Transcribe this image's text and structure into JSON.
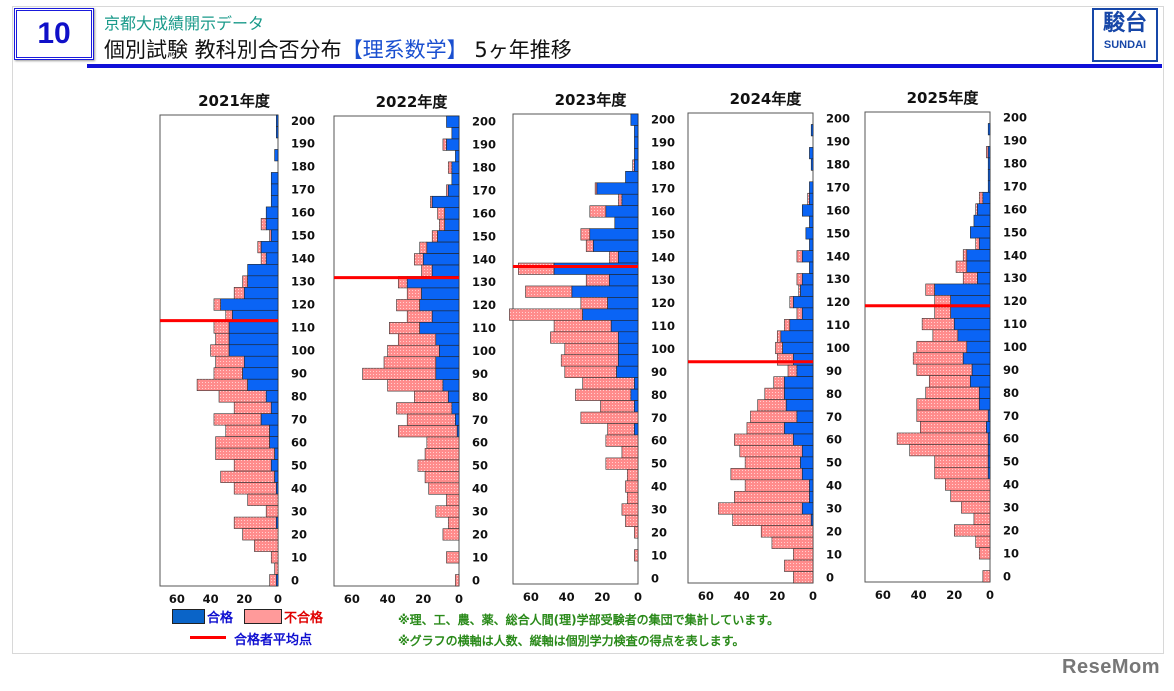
{
  "header": {
    "number": "10",
    "subtitle": "京都大成績開示データ",
    "title_pre": "個別試験 教科別合否分布",
    "title_hl": "【理系数学】",
    "title_post": " 5ヶ年推移",
    "logo_kanji": "駿台",
    "logo_en": "SUNDAI"
  },
  "legend": {
    "pass_label": "合格",
    "fail_label": "不合格",
    "mean_label": "合格者平均点"
  },
  "notes": [
    "※理、工、農、薬、総合人間(理)学部受験者の集団で集計しています。",
    "※グラフの横軸は人数、縦軸は個別学力検査の得点を表します。"
  ],
  "watermark": "ReseMom",
  "colors": {
    "pass": "#0a64f5",
    "fail": "#ff8c8c",
    "mean": "#ff0000"
  },
  "chart_data": {
    "type": "bar",
    "orientation": "horizontal-stacked",
    "xlabel_meaning": "人数",
    "ylabel_meaning": "得点",
    "xlim": [
      0,
      70
    ],
    "x_direction": "reversed",
    "x_ticks": [
      "60",
      "40",
      "20",
      "0"
    ],
    "y_ticks": [
      "200",
      "190",
      "180",
      "170",
      "160",
      "150",
      "140",
      "130",
      "120",
      "110",
      "100",
      "90",
      "80",
      "70",
      "60",
      "50",
      "40",
      "30",
      "20",
      "10",
      "0"
    ],
    "score_bins": [
      200,
      195,
      190,
      185,
      180,
      175,
      170,
      165,
      160,
      155,
      150,
      145,
      140,
      135,
      130,
      125,
      120,
      115,
      110,
      105,
      100,
      95,
      90,
      85,
      80,
      75,
      70,
      65,
      60,
      55,
      50,
      45,
      40,
      35,
      30,
      25,
      20,
      15,
      10,
      5,
      0
    ],
    "panels": [
      {
        "title": "2021年度",
        "mean": 113,
        "pass": [
          1,
          1,
          0,
          2,
          0,
          4,
          4,
          4,
          7,
          7,
          4,
          10,
          7,
          18,
          18,
          20,
          34,
          27,
          29,
          29,
          29,
          20,
          21,
          18,
          7,
          4,
          10,
          5,
          5,
          2,
          4,
          2,
          1,
          0,
          0,
          1,
          0,
          0,
          0,
          0,
          1
        ],
        "fail": [
          0,
          0,
          0,
          0,
          0,
          0,
          0,
          0,
          0,
          3,
          1,
          2,
          3,
          0,
          3,
          6,
          4,
          4,
          9,
          8,
          11,
          17,
          17,
          30,
          28,
          22,
          28,
          26,
          32,
          35,
          22,
          32,
          25,
          18,
          7,
          25,
          21,
          14,
          4,
          2,
          4
        ]
      },
      {
        "title": "2022年度",
        "mean": 132,
        "pass": [
          7,
          4,
          7,
          2,
          4,
          4,
          6,
          15,
          8,
          8,
          12,
          18,
          20,
          15,
          29,
          21,
          22,
          15,
          22,
          13,
          11,
          13,
          13,
          9,
          6,
          4,
          2,
          1,
          0,
          0,
          0,
          0,
          0,
          0,
          0,
          0,
          0,
          0,
          0,
          0,
          0
        ],
        "fail": [
          0,
          0,
          2,
          0,
          2,
          0,
          1,
          1,
          4,
          3,
          3,
          4,
          5,
          6,
          5,
          8,
          13,
          14,
          17,
          21,
          29,
          29,
          41,
          31,
          19,
          31,
          27,
          33,
          18,
          19,
          23,
          19,
          17,
          7,
          13,
          6,
          9,
          0,
          7,
          0,
          2
        ]
      },
      {
        "title": "2023年度",
        "mean": 136,
        "pass": [
          4,
          2,
          2,
          2,
          2,
          7,
          23,
          9,
          18,
          13,
          27,
          25,
          11,
          47,
          16,
          37,
          17,
          31,
          15,
          11,
          11,
          11,
          12,
          2,
          4,
          2,
          0,
          2,
          0,
          0,
          0,
          0,
          0,
          0,
          0,
          0,
          0,
          0,
          0,
          0,
          0
        ],
        "fail": [
          0,
          0,
          0,
          0,
          1,
          0,
          1,
          2,
          9,
          0,
          5,
          4,
          5,
          20,
          13,
          26,
          15,
          41,
          32,
          38,
          30,
          32,
          29,
          29,
          31,
          19,
          32,
          15,
          18,
          9,
          18,
          6,
          7,
          6,
          9,
          7,
          2,
          0,
          2,
          0,
          0
        ]
      },
      {
        "title": "2024年度",
        "mean": 94,
        "pass": [
          0,
          1,
          0,
          2,
          1,
          0,
          2,
          2,
          6,
          2,
          4,
          2,
          6,
          2,
          6,
          7,
          11,
          6,
          13,
          18,
          17,
          11,
          9,
          16,
          16,
          15,
          9,
          16,
          11,
          6,
          7,
          6,
          2,
          2,
          6,
          1,
          0,
          0,
          0,
          0,
          0
        ],
        "fail": [
          0,
          0,
          0,
          0,
          0,
          0,
          0,
          1,
          0,
          0,
          0,
          0,
          3,
          0,
          3,
          1,
          2,
          3,
          3,
          2,
          4,
          9,
          5,
          6,
          11,
          16,
          26,
          21,
          33,
          35,
          31,
          40,
          36,
          42,
          47,
          44,
          29,
          23,
          11,
          16,
          11
        ]
      },
      {
        "title": "2025年度",
        "mean": 118,
        "pass": [
          0,
          1,
          0,
          1,
          1,
          1,
          1,
          4,
          7,
          9,
          11,
          6,
          13,
          13,
          7,
          31,
          22,
          22,
          20,
          18,
          13,
          15,
          10,
          11,
          6,
          6,
          1,
          2,
          1,
          1,
          1,
          1,
          0,
          0,
          0,
          0,
          0,
          0,
          0,
          0,
          0
        ],
        "fail": [
          0,
          0,
          0,
          1,
          0,
          0,
          0,
          2,
          1,
          0,
          0,
          2,
          2,
          6,
          8,
          5,
          9,
          9,
          18,
          14,
          28,
          28,
          31,
          23,
          30,
          35,
          40,
          37,
          51,
          44,
          30,
          30,
          25,
          22,
          16,
          9,
          20,
          8,
          6,
          0,
          4
        ]
      }
    ]
  }
}
